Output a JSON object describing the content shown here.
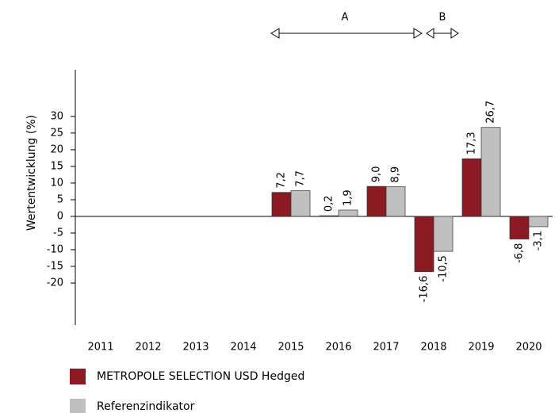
{
  "chart_data": {
    "type": "bar",
    "y_label": "Wertentwicklung (%)",
    "categories": [
      "2011",
      "2012",
      "2013",
      "2014",
      "2015",
      "2016",
      "2017",
      "2018",
      "2019",
      "2020"
    ],
    "series": [
      {
        "name": "METROPOLE SELECTION USD Hedged",
        "color": "#8b1a22",
        "values": [
          null,
          null,
          null,
          null,
          7.2,
          0.2,
          9.0,
          -16.6,
          17.3,
          -6.8
        ],
        "value_labels": [
          null,
          null,
          null,
          null,
          "7,2",
          "0,2",
          "9,0",
          "-16,6",
          "17,3",
          "-6,8"
        ]
      },
      {
        "name": "Referenzindikator",
        "color": "#c0c0c0",
        "values": [
          null,
          null,
          null,
          null,
          7.7,
          1.9,
          8.9,
          -10.5,
          26.7,
          -3.1
        ],
        "value_labels": [
          null,
          null,
          null,
          null,
          "7,7",
          "1,9",
          "8,9",
          "-10,5",
          "26,7",
          "-3,1"
        ]
      }
    ],
    "annotations": [
      "A",
      "B"
    ],
    "ylim": [
      -32.6,
      44
    ],
    "yticks": [
      30,
      25,
      20,
      15,
      10,
      5,
      0,
      -5,
      -10,
      -15,
      -20
    ]
  }
}
